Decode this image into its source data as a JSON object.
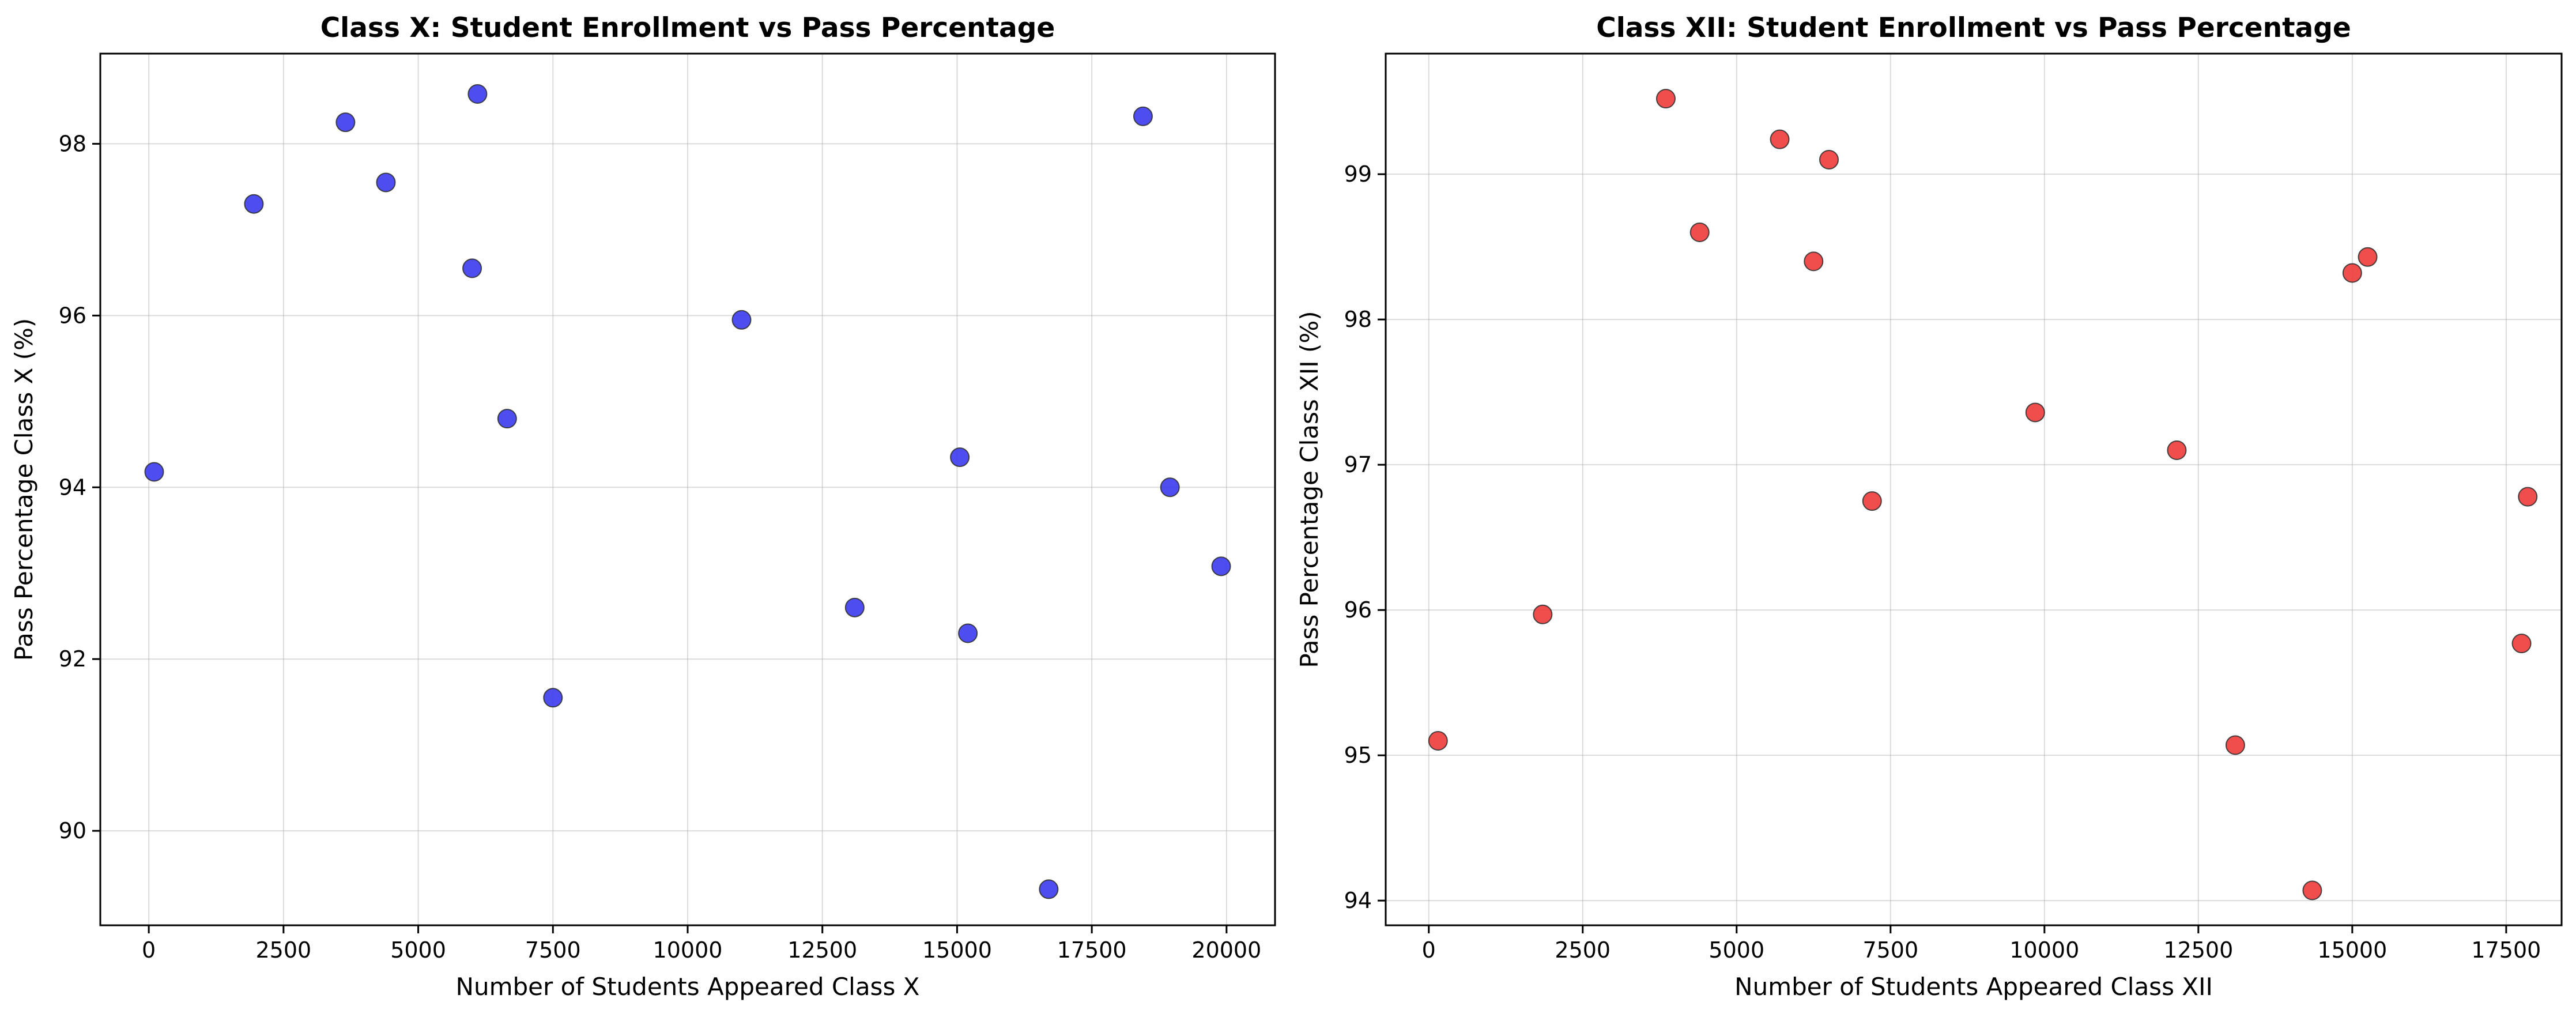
{
  "chart_data": [
    {
      "type": "scatter",
      "title": "Class X: Student Enrollment vs Pass Percentage",
      "xlabel": "Number of Students Appeared Class X",
      "ylabel": "Pass Percentage Class X (%)",
      "xlim": [
        -900,
        20900
      ],
      "ylim": [
        88.9,
        99.05
      ],
      "xticks": [
        0,
        2500,
        5000,
        7500,
        10000,
        12500,
        15000,
        17500,
        20000
      ],
      "yticks": [
        90,
        92,
        94,
        96,
        98
      ],
      "grid": true,
      "color": "#3a3aee",
      "points": [
        {
          "x": 100,
          "y": 94.18
        },
        {
          "x": 1950,
          "y": 97.3
        },
        {
          "x": 3650,
          "y": 98.25
        },
        {
          "x": 4400,
          "y": 97.55
        },
        {
          "x": 6000,
          "y": 96.55
        },
        {
          "x": 6100,
          "y": 98.58
        },
        {
          "x": 6650,
          "y": 94.8
        },
        {
          "x": 7500,
          "y": 91.55
        },
        {
          "x": 11000,
          "y": 95.95
        },
        {
          "x": 13100,
          "y": 92.6
        },
        {
          "x": 15050,
          "y": 94.35
        },
        {
          "x": 15200,
          "y": 92.3
        },
        {
          "x": 16700,
          "y": 89.32
        },
        {
          "x": 18450,
          "y": 98.32
        },
        {
          "x": 18950,
          "y": 94.0
        },
        {
          "x": 19900,
          "y": 93.08
        }
      ]
    },
    {
      "type": "scatter",
      "title": "Class XII: Student Enrollment vs Pass Percentage",
      "xlabel": "Number of Students Appeared Class XII",
      "ylabel": "Pass Percentage Class XII (%)",
      "xlim": [
        -700,
        18400
      ],
      "ylim": [
        93.83,
        99.83
      ],
      "xticks": [
        0,
        2500,
        5000,
        7500,
        10000,
        12500,
        15000,
        17500
      ],
      "yticks": [
        94,
        95,
        96,
        97,
        98,
        99
      ],
      "grid": true,
      "color": "#ee3a3a",
      "points": [
        {
          "x": 150,
          "y": 95.1
        },
        {
          "x": 1850,
          "y": 95.97
        },
        {
          "x": 3850,
          "y": 99.52
        },
        {
          "x": 4400,
          "y": 98.6
        },
        {
          "x": 5700,
          "y": 99.24
        },
        {
          "x": 6250,
          "y": 98.4
        },
        {
          "x": 6500,
          "y": 99.1
        },
        {
          "x": 7200,
          "y": 96.75
        },
        {
          "x": 9850,
          "y": 97.36
        },
        {
          "x": 12150,
          "y": 97.1
        },
        {
          "x": 13100,
          "y": 95.07
        },
        {
          "x": 14350,
          "y": 94.07
        },
        {
          "x": 15000,
          "y": 98.32
        },
        {
          "x": 15250,
          "y": 98.43
        },
        {
          "x": 17750,
          "y": 95.77
        },
        {
          "x": 17850,
          "y": 96.78
        }
      ]
    }
  ]
}
